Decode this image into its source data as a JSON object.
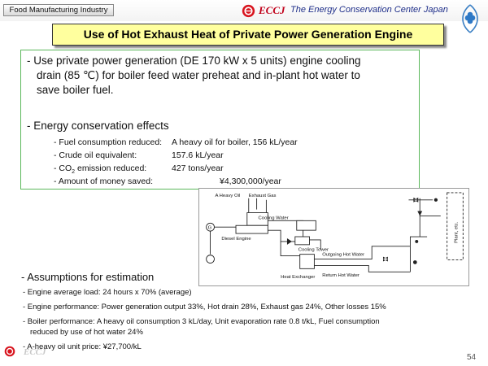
{
  "header": {
    "category": "Food Manufacturing Industry",
    "eccj": "ECCJ",
    "org_name": "The Energy Conservation Center Japan"
  },
  "title": "Use of Hot Exhaust Heat of Private Power Generation Engine",
  "bullet1": {
    "line1": "- Use private power generation (DE 170 kW x 5 units) engine cooling",
    "line2": "drain (85 ℃) for boiler feed water preheat and in-plant hot water to",
    "line3": "save boiler fuel."
  },
  "bullet2": {
    "heading": "- Energy conservation effects",
    "items": [
      {
        "label": "- Fuel consumption reduced:",
        "value": "A heavy oil for boiler, 156 kL/year"
      },
      {
        "label": "- Crude oil equivalent:",
        "value": "157.6 kL/year"
      },
      {
        "label_pre": "- CO",
        "label_sub": "2",
        "label_post": " emission reduced:",
        "value": "427 tons/year"
      },
      {
        "label": "- Amount of money saved:",
        "value": "¥4,300,000/year"
      }
    ]
  },
  "diagram": {
    "a_heavy_oil": "A Heavy Oil",
    "exhaust_gas": "Exhaust Gas",
    "cooling_water": "Cooling Water",
    "diesel_engine": "Diesel Engine",
    "cooling_tower": "Cooling Tower",
    "outgoing_hot_water": "Outgoing Hot Water",
    "heat_exchanger": "Heat Exchanger",
    "return_hot_water": "Return Hot Water",
    "plant": "Plant, etc.",
    "generator_symbol": "G"
  },
  "assumptions": {
    "heading": "- Assumptions for estimation",
    "items": [
      "- Engine average load: 24 hours x 70% (average)",
      "- Engine performance: Power generation output 33%, Hot drain 28%, Exhaust gas 24%, Other losses 15%",
      "- Boiler performance: A heavy oil consumption 3 kL/day, Unit evaporation rate 0.8 t/kL, Fuel consumption",
      "reduced by use of hot water 24%",
      "- A-heavy oil unit price: ¥27,700/kL"
    ]
  },
  "footer": {
    "eccj": "ECCJ",
    "page_number": "54"
  }
}
